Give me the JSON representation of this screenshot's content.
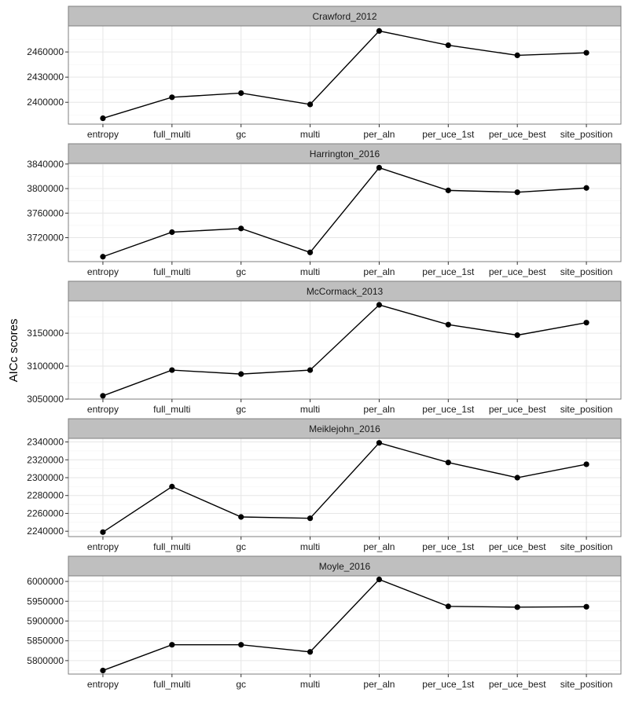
{
  "y_axis_title": "AICc scores",
  "chart_data": [
    {
      "type": "line",
      "title": "Crawford_2012",
      "categories": [
        "entropy",
        "full_multi",
        "gc",
        "multi",
        "per_aln",
        "per_uce_1st",
        "per_uce_best",
        "site_position"
      ],
      "values": [
        2381000,
        2406000,
        2411000,
        2397500,
        2485000,
        2468000,
        2456000,
        2459000
      ],
      "yticks": [
        2400000,
        2430000,
        2460000
      ],
      "ylim": [
        2374000,
        2491000
      ],
      "xlabel": "",
      "ylabel": "AICc scores",
      "grid": true
    },
    {
      "type": "line",
      "title": "Harrington_2016",
      "categories": [
        "entropy",
        "full_multi",
        "gc",
        "multi",
        "per_aln",
        "per_uce_1st",
        "per_uce_best",
        "site_position"
      ],
      "values": [
        3689000,
        3729000,
        3735000,
        3696000,
        3834000,
        3797000,
        3794000,
        3801000
      ],
      "yticks": [
        3720000,
        3760000,
        3800000,
        3840000
      ],
      "ylim": [
        3681000,
        3841000
      ],
      "xlabel": "",
      "ylabel": "AICc scores",
      "grid": true
    },
    {
      "type": "line",
      "title": "McCormack_2013",
      "categories": [
        "entropy",
        "full_multi",
        "gc",
        "multi",
        "per_aln",
        "per_uce_1st",
        "per_uce_best",
        "site_position"
      ],
      "values": [
        3055000,
        3094000,
        3088000,
        3094000,
        3193000,
        3163000,
        3147000,
        3166000
      ],
      "yticks": [
        3050000,
        3100000,
        3150000
      ],
      "ylim": [
        3050000,
        3199000
      ],
      "xlabel": "",
      "ylabel": "AICc scores",
      "grid": true
    },
    {
      "type": "line",
      "title": "Meiklejohn_2016",
      "categories": [
        "entropy",
        "full_multi",
        "gc",
        "multi",
        "per_aln",
        "per_uce_1st",
        "per_uce_best",
        "site_position"
      ],
      "values": [
        2239000,
        2290000,
        2256000,
        2254500,
        2339000,
        2317000,
        2300000,
        2315000
      ],
      "yticks": [
        2240000,
        2260000,
        2280000,
        2300000,
        2320000,
        2340000
      ],
      "ylim": [
        2234000,
        2344000
      ],
      "xlabel": "",
      "ylabel": "AICc scores",
      "grid": true
    },
    {
      "type": "line",
      "title": "Moyle_2016",
      "categories": [
        "entropy",
        "full_multi",
        "gc",
        "multi",
        "per_aln",
        "per_uce_1st",
        "per_uce_best",
        "site_position"
      ],
      "values": [
        5775000,
        5840000,
        5840000,
        5822000,
        6005000,
        5937000,
        5935000,
        5936000
      ],
      "yticks": [
        5800000,
        5850000,
        5900000,
        5950000,
        6000000
      ],
      "ylim": [
        5766000,
        6014000
      ],
      "xlabel": "",
      "ylabel": "AICc scores",
      "grid": true
    }
  ],
  "colors": {
    "strip_fill": "#bfbfbf",
    "panel_border": "#7f7f7f",
    "grid_major": "#e6e6e6",
    "grid_minor": "#f3f3f3",
    "line": "#000000",
    "point": "#000000"
  }
}
